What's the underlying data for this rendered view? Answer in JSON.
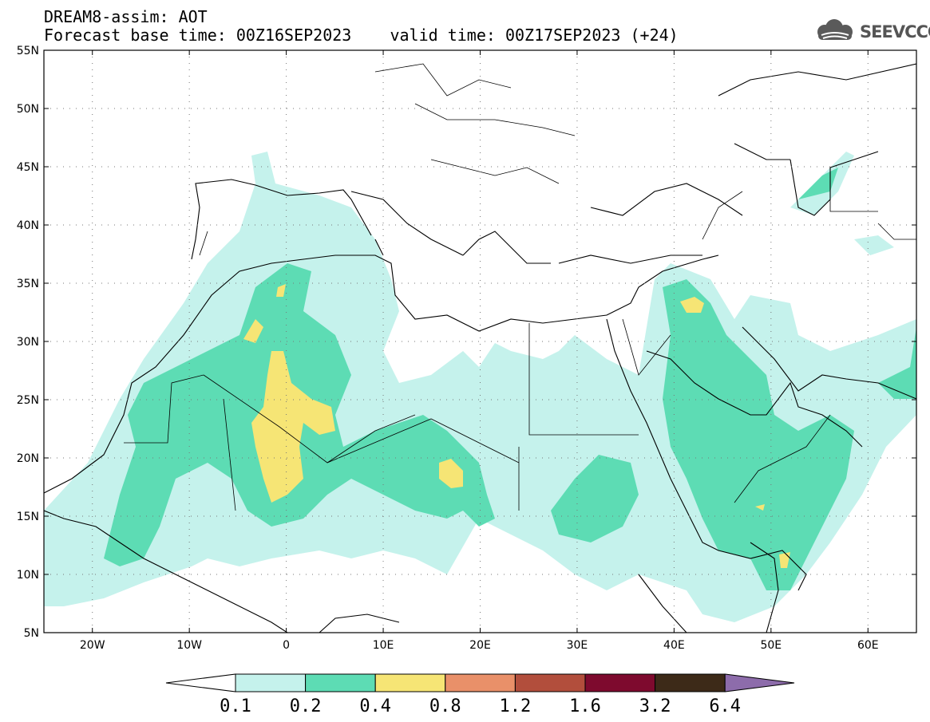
{
  "title": {
    "line1": "DREAM8-assim: AOT",
    "line2": "Forecast base time: 00Z16SEP2023    valid time: 00Z17SEP2023 (+24)"
  },
  "logo": {
    "text": "SEEVCCC",
    "icon": "cloud-icon"
  },
  "map": {
    "projection": "lat-lon",
    "lon_range": [
      -25,
      65
    ],
    "lat_range": [
      5,
      55
    ],
    "lat_ticks": [
      {
        "value": 55,
        "label": "55N"
      },
      {
        "value": 50,
        "label": "50N"
      },
      {
        "value": 45,
        "label": "45N"
      },
      {
        "value": 40,
        "label": "40N"
      },
      {
        "value": 35,
        "label": "35N"
      },
      {
        "value": 30,
        "label": "30N"
      },
      {
        "value": 25,
        "label": "25N"
      },
      {
        "value": 20,
        "label": "20N"
      },
      {
        "value": 15,
        "label": "15N"
      },
      {
        "value": 10,
        "label": "10N"
      },
      {
        "value": 5,
        "label": "5N"
      }
    ],
    "lon_ticks": [
      {
        "value": -20,
        "label": "20W"
      },
      {
        "value": -10,
        "label": "10W"
      },
      {
        "value": 0,
        "label": "0"
      },
      {
        "value": 10,
        "label": "10E"
      },
      {
        "value": 20,
        "label": "20E"
      },
      {
        "value": 30,
        "label": "30E"
      },
      {
        "value": 40,
        "label": "40E"
      },
      {
        "value": 50,
        "label": "50E"
      },
      {
        "value": 60,
        "label": "60E"
      }
    ],
    "gridlines": "dotted"
  },
  "colorbar": {
    "labels": [
      "0.1",
      "0.2",
      "0.4",
      "0.8",
      "1.2",
      "1.6",
      "3.2",
      "6.4"
    ],
    "colors": [
      "#ffffff",
      "#c5f2ec",
      "#5ddcb4",
      "#f6e575",
      "#e99069",
      "#b24e3c",
      "#7e0a2e",
      "#3d2a18",
      "#8d6cab"
    ]
  }
}
